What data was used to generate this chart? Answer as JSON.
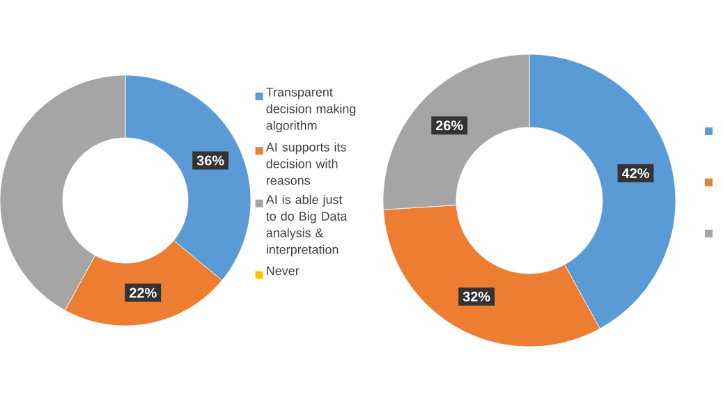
{
  "chart_data": [
    {
      "type": "donut",
      "categories": [
        "Transparent decision making algorithm",
        "AI supports its decision with reasons",
        "AI is able just to do Big Data analysis & interpretation",
        "Never"
      ],
      "values": [
        36,
        22,
        42,
        0
      ],
      "colors": [
        "#5b9bd5",
        "#ed7d31",
        "#a5a5a5",
        "#ffc000"
      ],
      "value_labels": [
        "36%",
        "22%",
        null,
        null
      ],
      "legend": "right"
    },
    {
      "type": "donut",
      "categories": [
        null,
        null,
        null
      ],
      "values": [
        42,
        32,
        26
      ],
      "colors": [
        "#5b9bd5",
        "#ed7d31",
        "#a5a5a5"
      ],
      "value_labels": [
        "42%",
        "32%",
        "26%"
      ]
    }
  ]
}
